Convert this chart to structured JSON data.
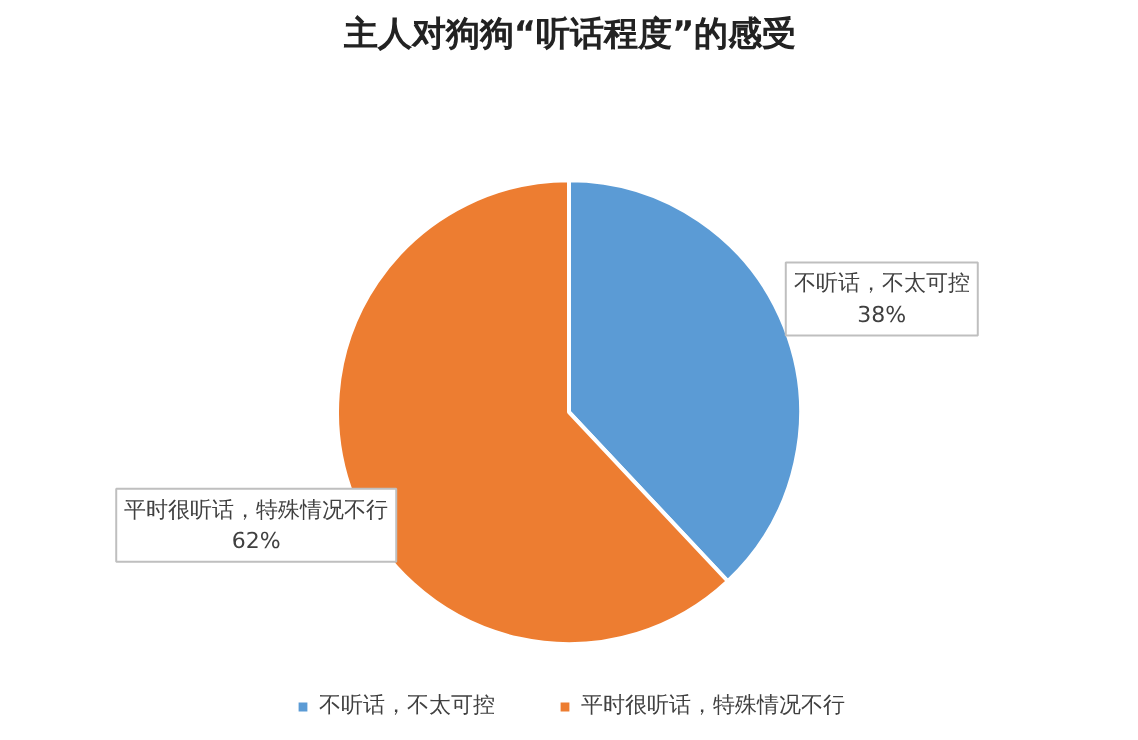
{
  "chart_data": {
    "type": "pie",
    "title": "主人对狗狗“听话程度”的感受",
    "categories": [
      "不听话，不太可控",
      "平时很听话，特殊情况不行"
    ],
    "values": [
      38,
      62
    ],
    "value_labels": [
      "38%",
      "62%"
    ],
    "colors": [
      "#5b9bd5",
      "#ed7d31"
    ],
    "legend": "bottom"
  }
}
